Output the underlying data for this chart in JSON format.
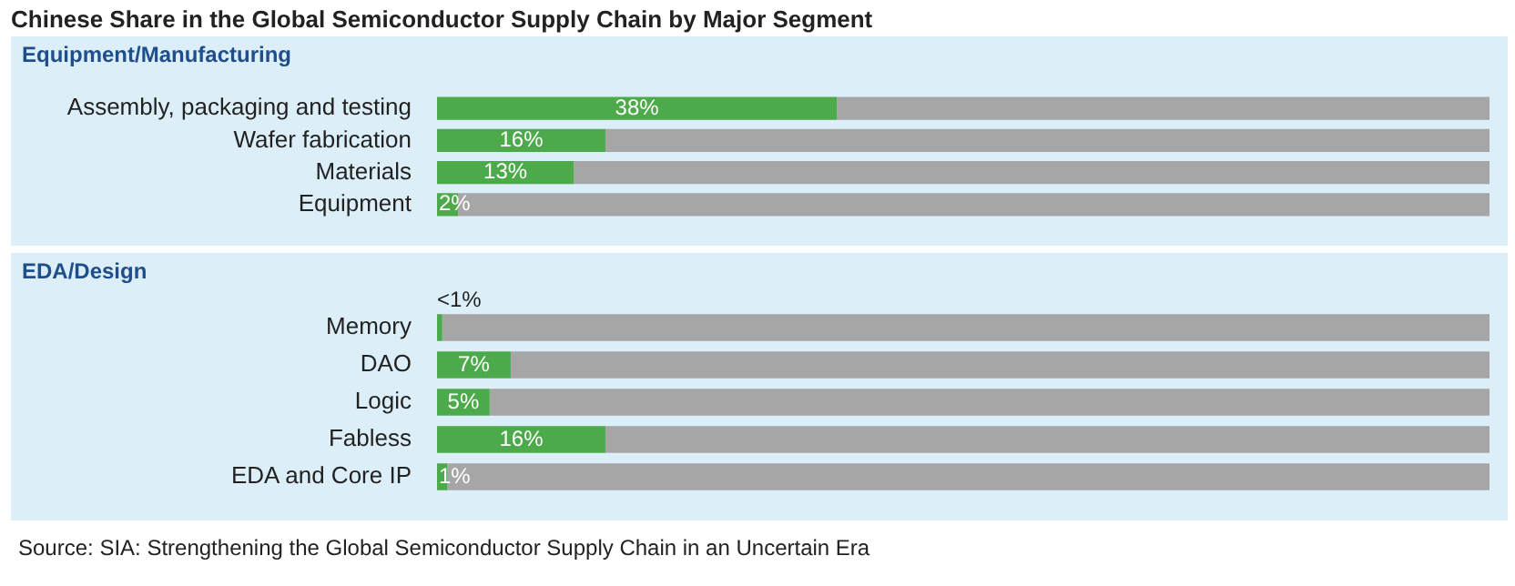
{
  "chart_data": [
    {
      "type": "bar",
      "orientation": "horizontal",
      "stacked": true,
      "title": "Chinese Share in the Global Semiconductor Supply Chain by Major Segment",
      "subtitle": "Equipment/Manufacturing",
      "categories": [
        "Assembly, packaging and testing",
        "Wafer fabrication",
        "Materials",
        "Equipment"
      ],
      "xlim": [
        0,
        100
      ],
      "tick_labels": "y",
      "series": [
        {
          "color": "#4caa4a",
          "values": [
            38,
            16,
            13,
            2
          ],
          "value_labels": [
            "38%",
            "16%",
            "13%",
            "2%"
          ]
        },
        {
          "color": "#a6a6a6",
          "values": [
            62,
            84,
            87,
            98
          ]
        }
      ]
    },
    {
      "type": "bar",
      "orientation": "horizontal",
      "stacked": true,
      "subtitle": "EDA/Design",
      "categories": [
        "Memory",
        "DAO",
        "Logic",
        "Fabless",
        "EDA and Core IP"
      ],
      "xlim": [
        0,
        100
      ],
      "tick_labels": "y",
      "annotations": [
        "Source: SIA: Strengthening the Global Semiconductor Supply Chain in an Uncertain Era"
      ],
      "series": [
        {
          "color": "#4caa4a",
          "values": [
            0.5,
            7,
            5,
            16,
            1
          ],
          "value_labels": [
            "<1%",
            "7%",
            "5%",
            "16%",
            "1%"
          ]
        },
        {
          "color": "#a6a6a6",
          "values": [
            99.5,
            93,
            95,
            84,
            99
          ]
        }
      ]
    }
  ]
}
